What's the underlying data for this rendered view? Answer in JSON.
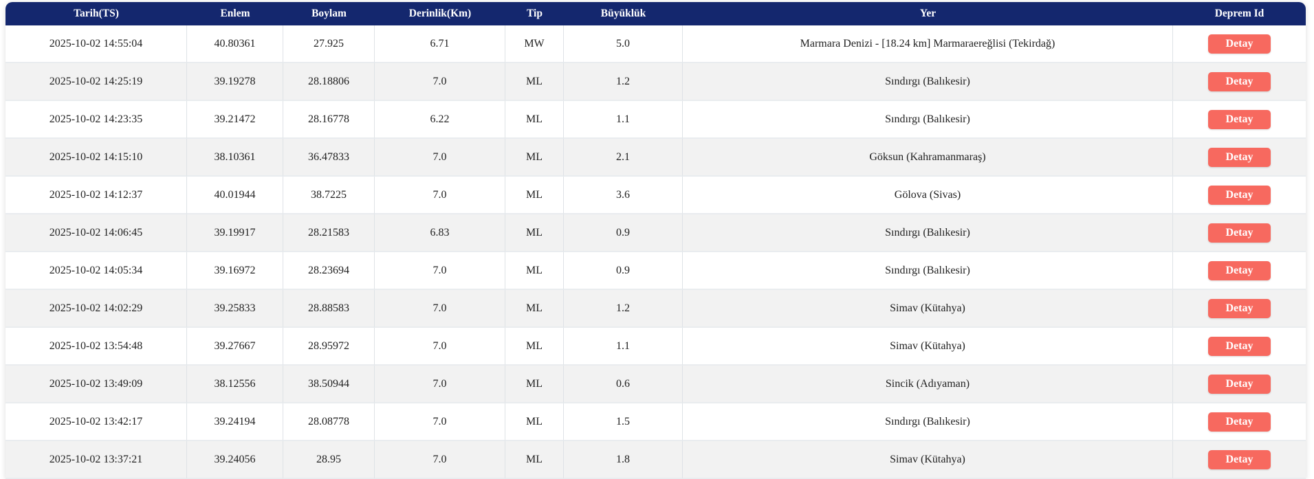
{
  "colors": {
    "header_bg": "#14276e",
    "header_text": "#ffffff",
    "button_bg": "#f7695f",
    "button_text": "#ffffff",
    "row_stripe": "#f2f2f2",
    "cell_border": "#dee2e6"
  },
  "table": {
    "columns": [
      {
        "key": "tarih",
        "label": "Tarih(TS)"
      },
      {
        "key": "enlem",
        "label": "Enlem"
      },
      {
        "key": "boylam",
        "label": "Boylam"
      },
      {
        "key": "derinlik",
        "label": "Derinlik(Km)"
      },
      {
        "key": "tip",
        "label": "Tip"
      },
      {
        "key": "buyukluk",
        "label": "Büyüklük"
      },
      {
        "key": "yer",
        "label": "Yer"
      },
      {
        "key": "deprem_id",
        "label": "Deprem Id"
      }
    ],
    "detail_button_label": "Detay",
    "rows": [
      {
        "tarih": "2025-10-02 14:55:04",
        "enlem": "40.80361",
        "boylam": "27.925",
        "derinlik": "6.71",
        "tip": "MW",
        "buyukluk": "5.0",
        "yer": "Marmara Denizi - [18.24 km] Marmaraereğlisi (Tekirdağ)"
      },
      {
        "tarih": "2025-10-02 14:25:19",
        "enlem": "39.19278",
        "boylam": "28.18806",
        "derinlik": "7.0",
        "tip": "ML",
        "buyukluk": "1.2",
        "yer": "Sındırgı (Balıkesir)"
      },
      {
        "tarih": "2025-10-02 14:23:35",
        "enlem": "39.21472",
        "boylam": "28.16778",
        "derinlik": "6.22",
        "tip": "ML",
        "buyukluk": "1.1",
        "yer": "Sındırgı (Balıkesir)"
      },
      {
        "tarih": "2025-10-02 14:15:10",
        "enlem": "38.10361",
        "boylam": "36.47833",
        "derinlik": "7.0",
        "tip": "ML",
        "buyukluk": "2.1",
        "yer": "Göksun (Kahramanmaraş)"
      },
      {
        "tarih": "2025-10-02 14:12:37",
        "enlem": "40.01944",
        "boylam": "38.7225",
        "derinlik": "7.0",
        "tip": "ML",
        "buyukluk": "3.6",
        "yer": "Gölova (Sivas)"
      },
      {
        "tarih": "2025-10-02 14:06:45",
        "enlem": "39.19917",
        "boylam": "28.21583",
        "derinlik": "6.83",
        "tip": "ML",
        "buyukluk": "0.9",
        "yer": "Sındırgı (Balıkesir)"
      },
      {
        "tarih": "2025-10-02 14:05:34",
        "enlem": "39.16972",
        "boylam": "28.23694",
        "derinlik": "7.0",
        "tip": "ML",
        "buyukluk": "0.9",
        "yer": "Sındırgı (Balıkesir)"
      },
      {
        "tarih": "2025-10-02 14:02:29",
        "enlem": "39.25833",
        "boylam": "28.88583",
        "derinlik": "7.0",
        "tip": "ML",
        "buyukluk": "1.2",
        "yer": "Simav (Kütahya)"
      },
      {
        "tarih": "2025-10-02 13:54:48",
        "enlem": "39.27667",
        "boylam": "28.95972",
        "derinlik": "7.0",
        "tip": "ML",
        "buyukluk": "1.1",
        "yer": "Simav (Kütahya)"
      },
      {
        "tarih": "2025-10-02 13:49:09",
        "enlem": "38.12556",
        "boylam": "38.50944",
        "derinlik": "7.0",
        "tip": "ML",
        "buyukluk": "0.6",
        "yer": "Sincik (Adıyaman)"
      },
      {
        "tarih": "2025-10-02 13:42:17",
        "enlem": "39.24194",
        "boylam": "28.08778",
        "derinlik": "7.0",
        "tip": "ML",
        "buyukluk": "1.5",
        "yer": "Sındırgı (Balıkesir)"
      },
      {
        "tarih": "2025-10-02 13:37:21",
        "enlem": "39.24056",
        "boylam": "28.95",
        "derinlik": "7.0",
        "tip": "ML",
        "buyukluk": "1.8",
        "yer": "Simav (Kütahya)"
      }
    ]
  }
}
